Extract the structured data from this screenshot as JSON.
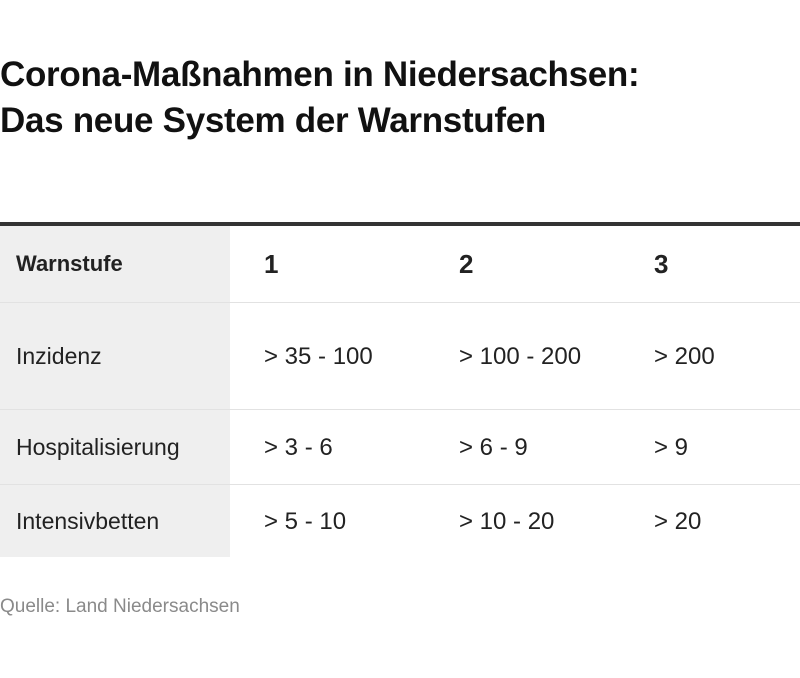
{
  "title": {
    "line1": "Corona-Maßnahmen in Niedersachsen:",
    "line2": "Das neue System der Warnstufen"
  },
  "table": {
    "header": {
      "label": "Warnstufe",
      "levels": [
        "1",
        "2",
        "3"
      ]
    },
    "rows": [
      {
        "label": "Inzidenz",
        "values": [
          "> 35 - 100",
          "> 100 - 200",
          "> 200"
        ]
      },
      {
        "label": "Hospitalisierung",
        "values": [
          "> 3 - 6",
          "> 6 - 9",
          "> 9"
        ]
      },
      {
        "label": "Intensivbetten",
        "values": [
          "> 5 - 10",
          "> 10 - 20",
          "> 20"
        ]
      }
    ]
  },
  "source": "Quelle: Land Niedersachsen",
  "colors": {
    "rule": "#333333",
    "row_header_bg": "#efefef",
    "source_text": "#8a8a8a"
  }
}
